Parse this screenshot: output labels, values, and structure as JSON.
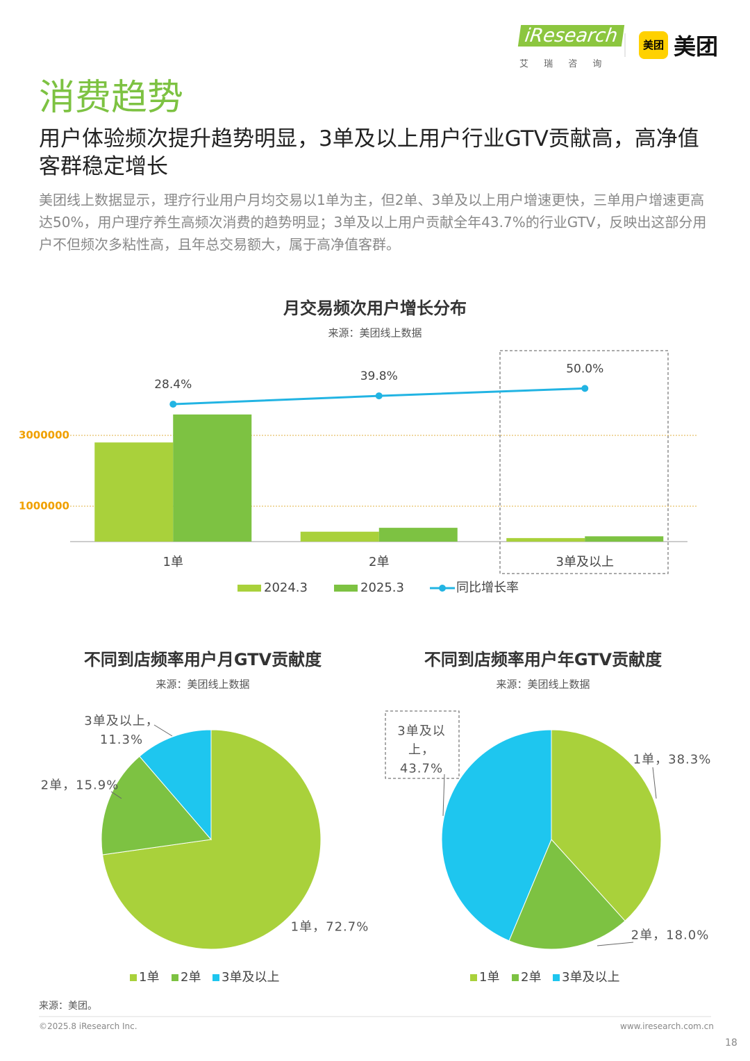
{
  "header": {
    "logo": "iResearch",
    "logo_sub": "艾 瑞 咨 询",
    "partner_badge": "美团",
    "partner": "美团"
  },
  "title": "消费趋势",
  "subtitle": "用户体验频次提升趋势明显，3单及以上用户行业GTV贡献高，高净值客群稳定增长",
  "body": "美团线上数据显示，理疗行业用户月均交易以1单为主，但2单、3单及以上用户增速更快，三单用户增速更高达50%，用户理疗养生高频次消费的趋势明显；3单及以上用户贡献全年43.7%的行业GTV，反映出这部分用户不但频次多粘性高，且年总交易额大，属于高净值客群。",
  "chart_data": [
    {
      "type": "bar",
      "title": "月交易频次用户增长分布",
      "subtitle": "来源：美团线上数据",
      "categories": [
        "1单",
        "2单",
        "3单及以上"
      ],
      "series": [
        {
          "name": "2024.3",
          "color": "#a9d13b",
          "values": [
            2800000,
            280000,
            100000
          ]
        },
        {
          "name": "2025.3",
          "color": "#7dc242",
          "values": [
            3590000,
            390000,
            150000
          ]
        },
        {
          "name": "同比增长率",
          "type": "line",
          "axis": "y2",
          "color": "#22b4e3",
          "values": [
            28.4,
            39.8,
            50.0
          ],
          "value_labels": [
            "28.4%",
            "39.8%",
            "50.0%"
          ]
        }
      ],
      "ylim": [
        0,
        5500000
      ],
      "yticks": [
        1000000,
        3000000
      ],
      "y2lim": [
        -160,
        107
      ],
      "grid": true,
      "legend": "bottom"
    },
    {
      "type": "pie",
      "title": "不同到店频率用户月GTV贡献度",
      "subtitle": "来源：美团线上数据",
      "categories": [
        "1单",
        "2单",
        "3单及以上"
      ],
      "colors": [
        "#a9d13b",
        "#7dc242",
        "#1ec6ef"
      ],
      "values": [
        72.7,
        15.9,
        11.3
      ],
      "value_labels": [
        "1单，72.7%",
        "2单，15.9%",
        "3单及以上，11.3%"
      ],
      "legend": "bottom"
    },
    {
      "type": "pie",
      "title": "不同到店频率用户年GTV贡献度",
      "subtitle": "来源：美团线上数据",
      "categories": [
        "1单",
        "2单",
        "3单及以上"
      ],
      "colors": [
        "#a9d13b",
        "#7dc242",
        "#1ec6ef"
      ],
      "values": [
        38.3,
        18.0,
        43.7
      ],
      "value_labels": [
        "1单，38.3%",
        "2单，18.0%",
        "3单及以上，43.7%"
      ],
      "legend": "bottom"
    }
  ],
  "footer": {
    "source": "来源：美团。",
    "copyright": "©2025.8 iResearch Inc.",
    "site": "www.iresearch.com.cn",
    "page": "18"
  }
}
